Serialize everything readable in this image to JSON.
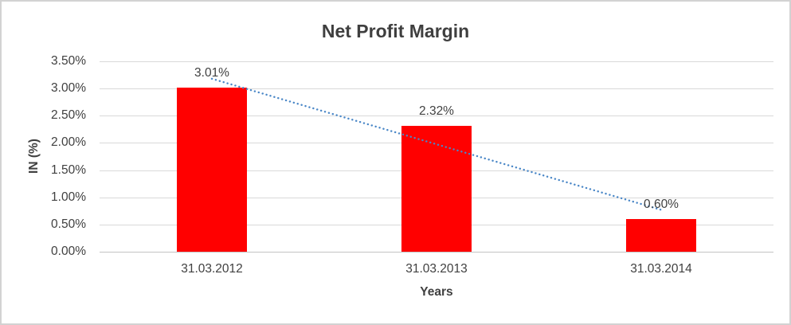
{
  "frame": {
    "border_color": "#D2D2D2",
    "background": "#FFFFFF"
  },
  "chart_data": {
    "type": "bar",
    "title": "Net Profit Margin",
    "xlabel": "Years",
    "ylabel": "IN (%)",
    "categories": [
      "31.03.2012",
      "31.03.2013",
      "31.03.2014"
    ],
    "values": [
      3.01,
      2.32,
      0.6
    ],
    "data_labels": [
      "3.01%",
      "2.32%",
      "0.60%"
    ],
    "ylim": [
      0,
      3.5
    ],
    "ytick_step": 0.5,
    "ytick_labels": [
      "0.00%",
      "0.50%",
      "1.00%",
      "1.50%",
      "2.00%",
      "2.50%",
      "3.00%",
      "3.50%"
    ],
    "grid": true,
    "legend": "none",
    "bar_color": "#FF0000",
    "trendline": {
      "type": "linear",
      "style": "dotted",
      "color": "#4A87C7",
      "start_value": 3.18,
      "end_value": 0.77
    },
    "colors": {
      "title_text": "#3F3F3F",
      "tick_text": "#404040",
      "gridline": "#D9D9D9",
      "axis_line": "#C3C3C3"
    }
  }
}
